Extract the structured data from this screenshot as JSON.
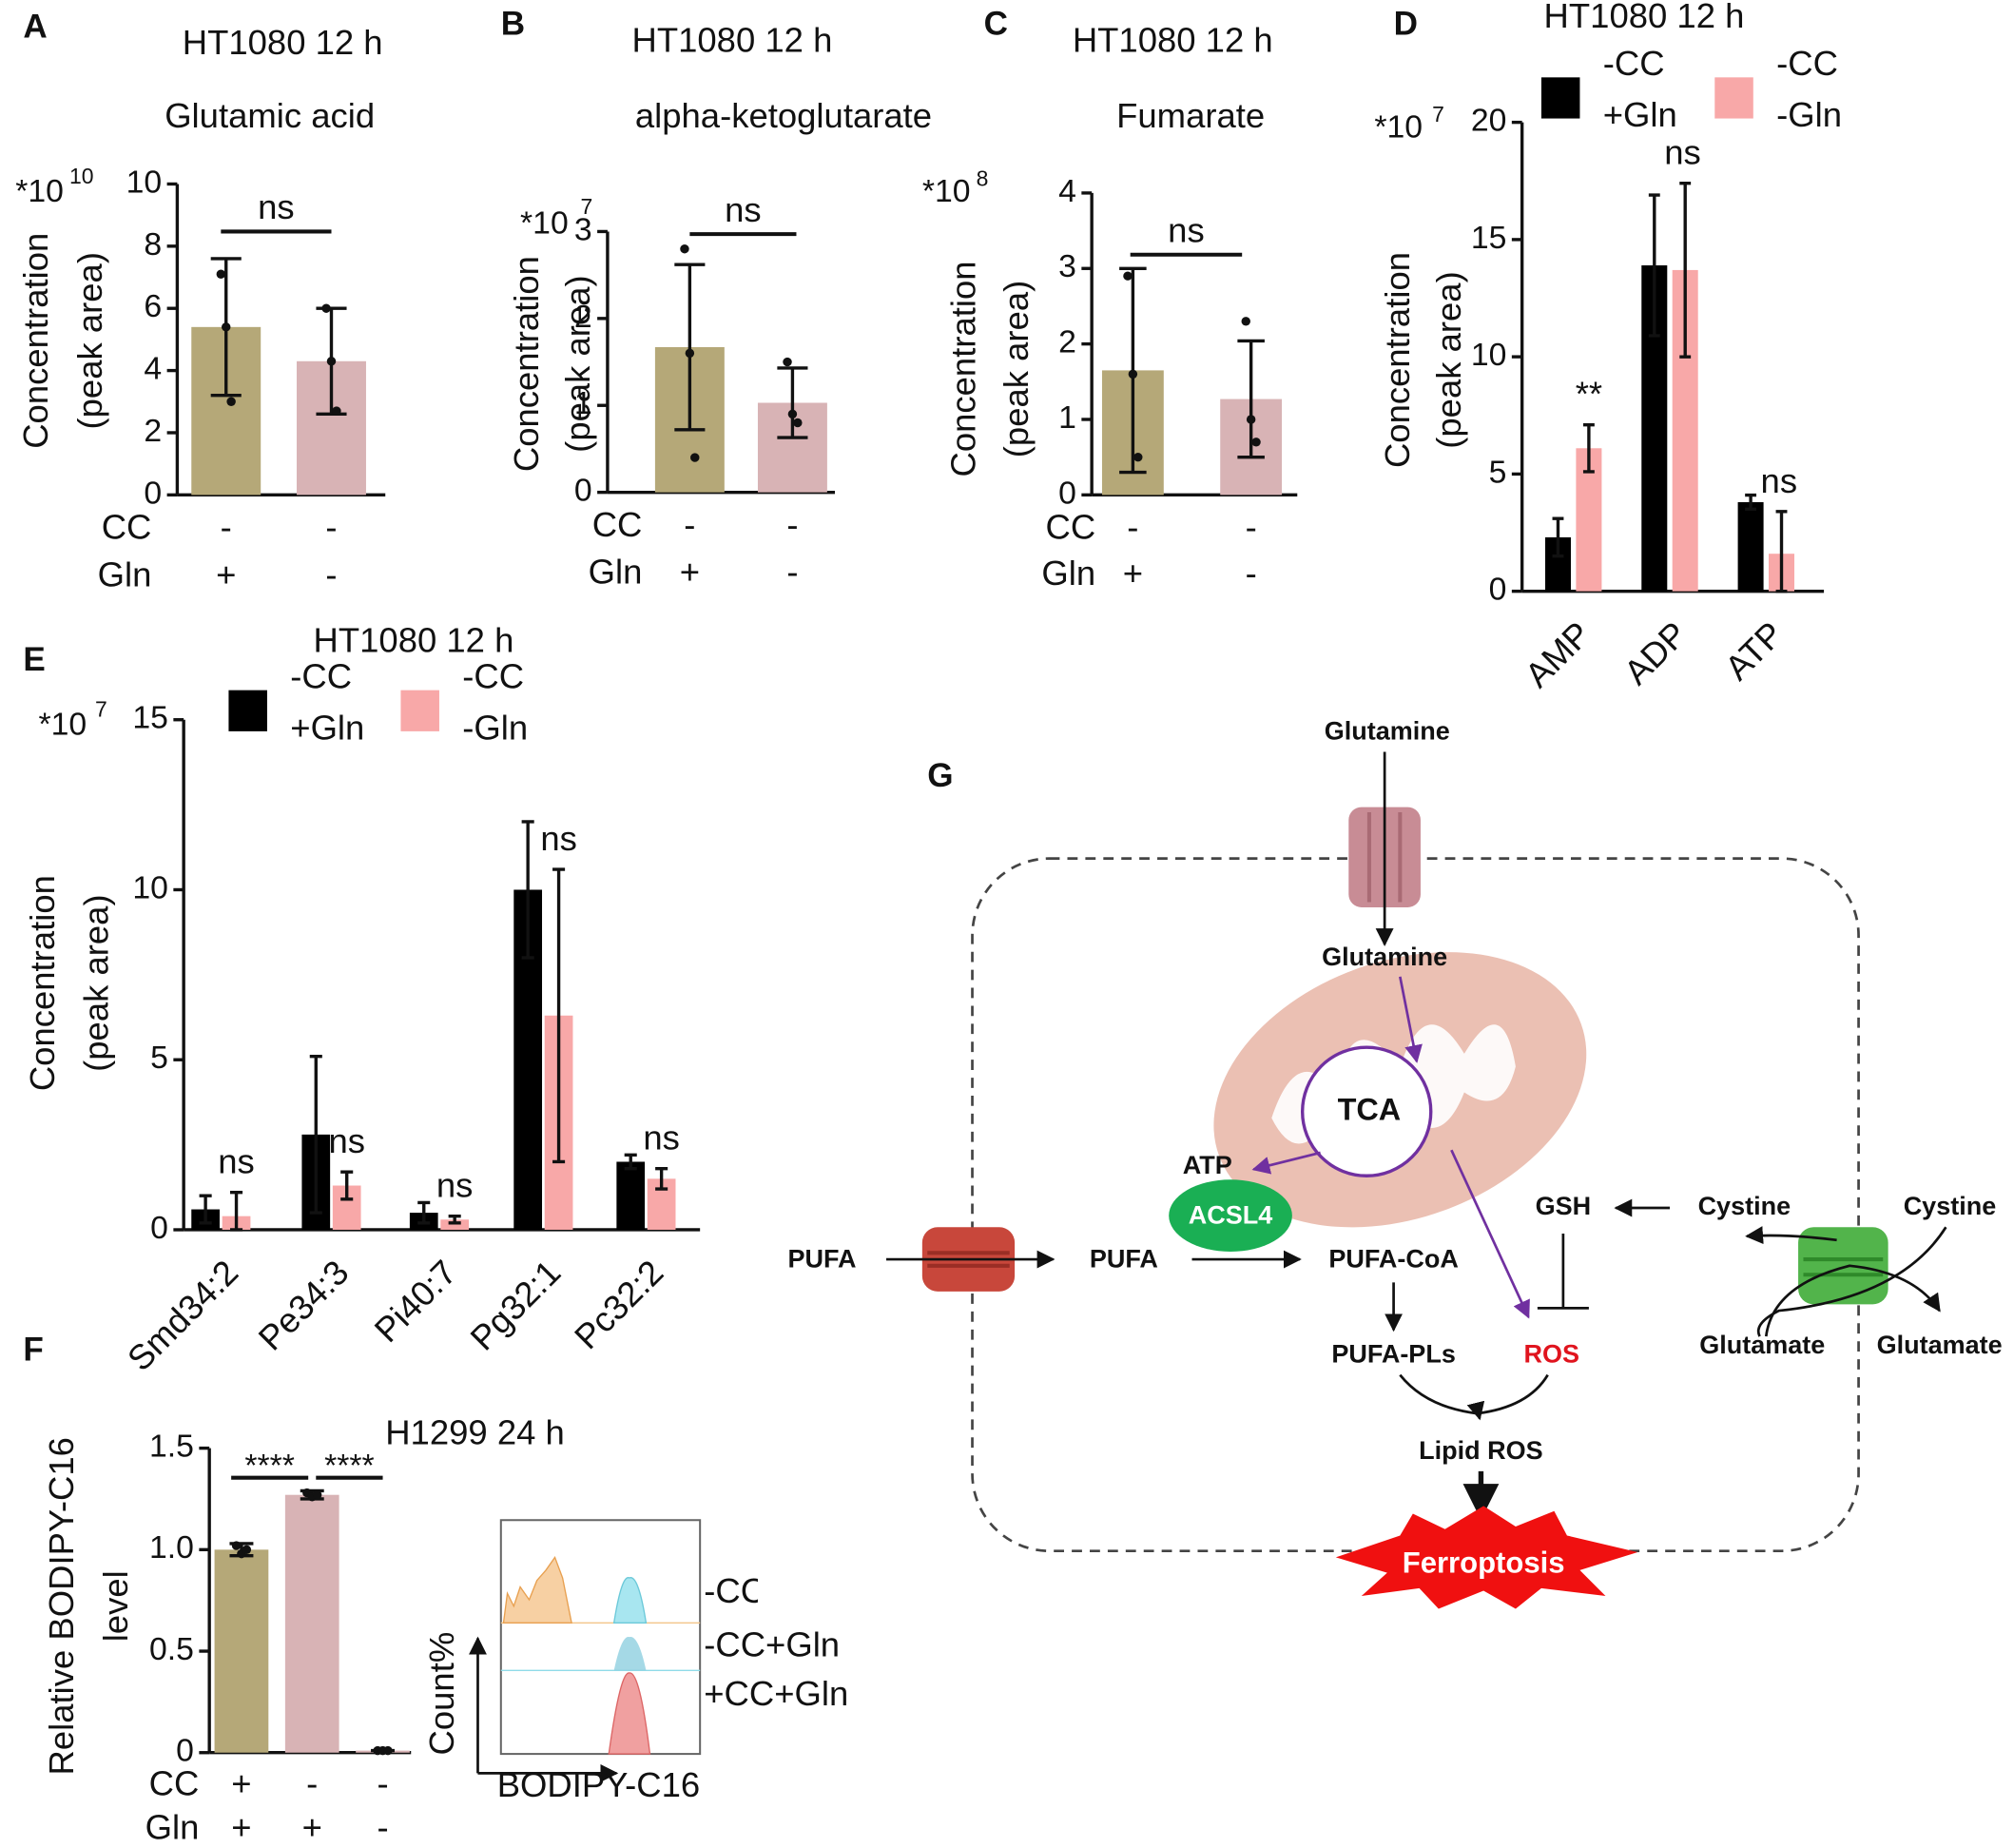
{
  "chart_data": [
    {
      "type": "bar",
      "label": "A",
      "title": "HT1080 12 h",
      "subtitle": "Glutamic acid",
      "y_multiplier": "*10",
      "y_exponent": "10",
      "ylabel": [
        "Concentration",
        "(peak area)"
      ],
      "ylim": [
        0,
        10
      ],
      "yticks": [
        0,
        2,
        4,
        6,
        8,
        10
      ],
      "series": [
        {
          "values": [
            5.4,
            4.3
          ],
          "errors": [
            2.2,
            1.7
          ],
          "colors": [
            "#b5a878",
            "#d8b3b5"
          ],
          "points": [
            [
              7.1,
              5.4,
              3.0
            ],
            [
              6.0,
              4.3,
              2.7
            ]
          ]
        }
      ],
      "conditions": [
        {
          "name": "CC",
          "values": [
            "-",
            "-"
          ]
        },
        {
          "name": "Gln",
          "values": [
            "+",
            "-"
          ]
        }
      ],
      "significance": [
        "ns"
      ]
    },
    {
      "type": "bar",
      "label": "B",
      "title": "HT1080 12 h",
      "subtitle": "alpha-ketoglutarate",
      "y_multiplier": "*10",
      "y_exponent": "7",
      "ylabel": [
        "Concentration",
        "(peak area)"
      ],
      "ylim": [
        0,
        3
      ],
      "yticks": [
        0,
        1,
        2,
        3
      ],
      "series": [
        {
          "values": [
            1.67,
            1.03
          ],
          "errors": [
            0.95,
            0.4
          ],
          "colors": [
            "#b5a878",
            "#d8b3b5"
          ],
          "points": [
            [
              2.8,
              1.6,
              0.4
            ],
            [
              1.5,
              0.9,
              0.8
            ]
          ]
        }
      ],
      "conditions": [
        {
          "name": "CC",
          "values": [
            "-",
            "-"
          ]
        },
        {
          "name": "Gln",
          "values": [
            "+",
            "-"
          ]
        }
      ],
      "significance": [
        "ns"
      ]
    },
    {
      "type": "bar",
      "label": "C",
      "title": "HT1080 12 h",
      "subtitle": "Fumarate",
      "y_multiplier": "*10",
      "y_exponent": "8",
      "ylabel": [
        "Concentration",
        "(peak area)"
      ],
      "ylim": [
        0,
        4
      ],
      "yticks": [
        0,
        1,
        2,
        3,
        4
      ],
      "series": [
        {
          "values": [
            1.65,
            1.27
          ],
          "errors": [
            1.35,
            0.77
          ],
          "colors": [
            "#b5a878",
            "#d8b3b5"
          ],
          "points": [
            [
              2.9,
              1.6,
              0.5
            ],
            [
              2.3,
              1.0,
              0.7
            ]
          ]
        }
      ],
      "conditions": [
        {
          "name": "CC",
          "values": [
            "-",
            "-"
          ]
        },
        {
          "name": "Gln",
          "values": [
            "+",
            "-"
          ]
        }
      ],
      "significance": [
        "ns"
      ]
    },
    {
      "type": "grouped_bar",
      "label": "D",
      "title": "HT1080 12 h",
      "y_multiplier": "*10",
      "y_exponent": "7",
      "ylabel": [
        "Concentration",
        "(peak area)"
      ],
      "ylim": [
        0,
        20
      ],
      "yticks": [
        0,
        5,
        10,
        15,
        20
      ],
      "categories": [
        "AMP",
        "ADP",
        "ATP"
      ],
      "series": [
        {
          "name": "-CC +Gln",
          "color": "#000000",
          "values": [
            2.3,
            13.9,
            3.8
          ],
          "errors": [
            0.8,
            3.0,
            0.3
          ]
        },
        {
          "name": "-CC -Gln",
          "color": "#f8a8a8",
          "values": [
            6.1,
            13.7,
            1.6
          ],
          "errors": [
            1.0,
            3.7,
            1.8
          ]
        }
      ],
      "annotations": [
        "**",
        "ns",
        "ns"
      ]
    },
    {
      "type": "grouped_bar",
      "label": "E",
      "title": "HT1080 12 h",
      "y_multiplier": "*10",
      "y_exponent": "7",
      "ylabel": [
        "Concentration",
        "(peak area)"
      ],
      "ylim": [
        0,
        15
      ],
      "yticks": [
        0,
        5,
        10,
        15
      ],
      "categories": [
        "Smd34:2",
        "Pe34:3",
        "Pi40:7",
        "Pg32:1",
        "Pc32:2"
      ],
      "series": [
        {
          "name": "-CC +Gln",
          "color": "#000000",
          "values": [
            0.6,
            2.8,
            0.5,
            10.0,
            2.0
          ],
          "errors": [
            0.4,
            2.3,
            0.3,
            2.0,
            0.2
          ]
        },
        {
          "name": "-CC -Gln",
          "color": "#f8a8a8",
          "values": [
            0.4,
            1.3,
            0.3,
            6.3,
            1.5
          ],
          "errors": [
            0.7,
            0.4,
            0.1,
            4.3,
            0.3
          ]
        }
      ],
      "annotations": [
        "ns",
        "ns",
        "ns",
        "ns",
        "ns"
      ]
    },
    {
      "type": "bar",
      "label": "F",
      "title": "H1299 24 h",
      "ylabel": [
        "Relative BODIPY-C16",
        "level"
      ],
      "ylim": [
        0,
        1.5
      ],
      "yticks": [
        0,
        0.5,
        {
          "value": 1,
          "label": "1.0"
        },
        1.5
      ],
      "series": [
        {
          "values": [
            1.0,
            1.27,
            0.01
          ],
          "errors": [
            0.03,
            0.02,
            0
          ],
          "colors": [
            "#b5a878",
            "#d8b3b5",
            "#d8b3b5"
          ],
          "points": [
            [
              1.02,
              0.98,
              1.0
            ],
            [
              1.28,
              1.26,
              1.27
            ],
            [
              0.01,
              0.01,
              0.01
            ]
          ]
        }
      ],
      "conditions": [
        {
          "name": "CC",
          "values": [
            "+",
            "-",
            "-"
          ]
        },
        {
          "name": "Gln",
          "values": [
            "+",
            "+",
            "-"
          ]
        }
      ],
      "significance": [
        "****",
        "****"
      ],
      "inset": {
        "ylabel": "Count%",
        "xlabel": "BODIPY-C16",
        "legend": [
          "-CC",
          "-CC+Gln",
          "+CC+Gln"
        ]
      }
    }
  ],
  "diagram": {
    "label": "G",
    "nodes": [
      "Glutamine",
      "Glutamine",
      "TCA",
      "ATP",
      "ACSL4",
      "PUFA",
      "PUFA",
      "PUFA-CoA",
      "PUFA-PLs",
      "ROS",
      "GSH",
      "Cystine",
      "Cystine",
      "Glutamate",
      "Glutamate",
      "Lipid ROS",
      "Ferroptosis"
    ]
  }
}
